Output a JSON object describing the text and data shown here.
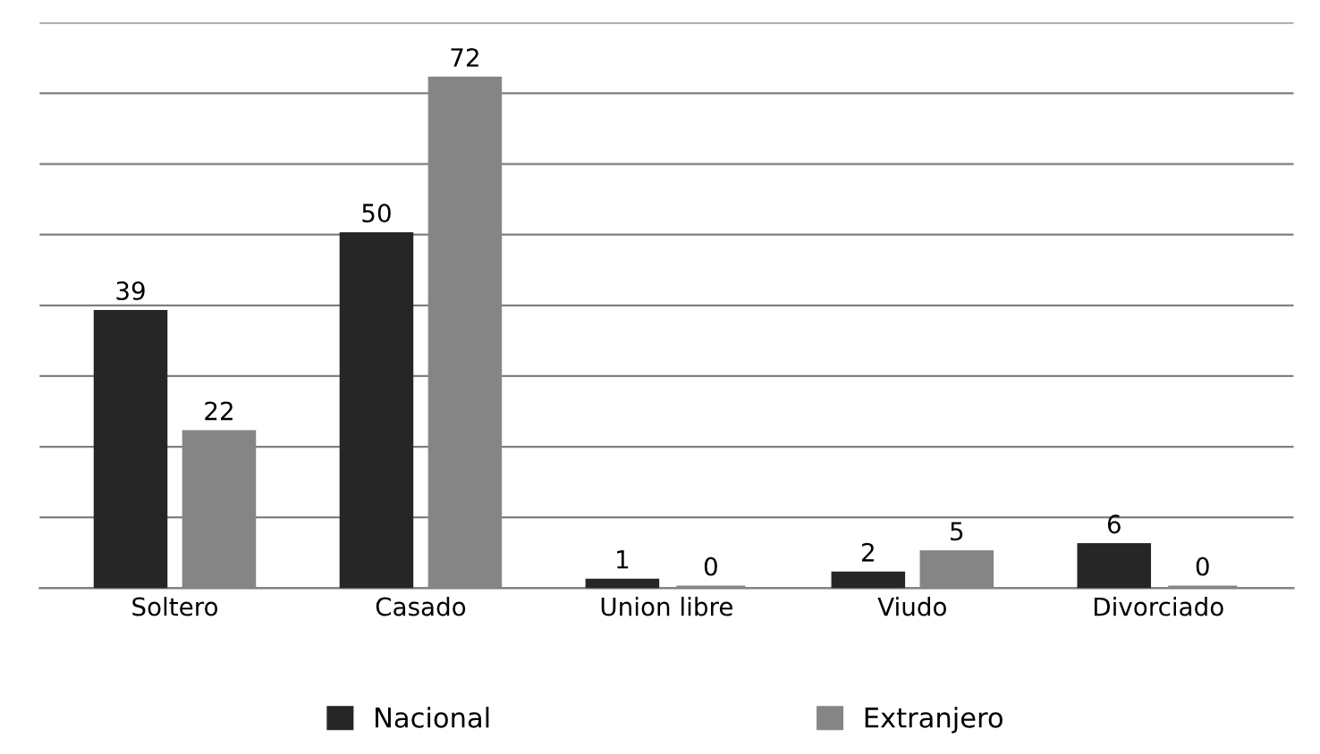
{
  "chart_data": {
    "type": "bar",
    "categories": [
      "Soltero",
      "Casado",
      "Union libre",
      "Viudo",
      "Divorciado"
    ],
    "series": [
      {
        "name": "Nacional",
        "color": "#262626",
        "values": [
          39,
          50,
          1,
          2,
          6
        ]
      },
      {
        "name": "Extranjero",
        "color": "#858585",
        "values": [
          22,
          72,
          0,
          5,
          0
        ]
      }
    ],
    "ylim": [
      0,
      80
    ],
    "yticks": [
      {
        "value": 0,
        "label": null
      },
      {
        "value": 10,
        "label": null
      },
      {
        "value": 20,
        "label": null
      },
      {
        "value": 30,
        "label": null
      },
      {
        "value": 40,
        "label": null
      },
      {
        "value": 50,
        "label": null
      },
      {
        "value": 60,
        "label": null
      },
      {
        "value": 70,
        "label": null
      },
      {
        "value": 80,
        "label": null
      }
    ],
    "tick_labels": "x",
    "grid": "y",
    "legend": "bottom",
    "data_labels": true
  }
}
